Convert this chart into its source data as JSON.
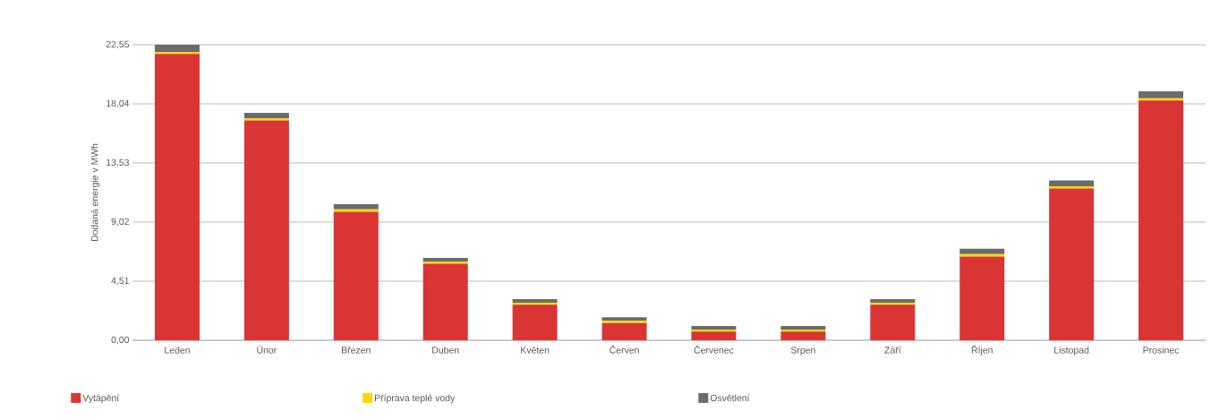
{
  "chart_data": {
    "type": "bar",
    "stacked": true,
    "ylabel": "Dodaná energie v MWh",
    "categories": [
      "Leden",
      "Únor",
      "Březen",
      "Duben",
      "Květen",
      "Červen",
      "Červenec",
      "Srpen",
      "Září",
      "Říjen",
      "Listopad",
      "Prosinec"
    ],
    "series": [
      {
        "name": "Vytápění",
        "color": "#d93535",
        "values": [
          21.85,
          16.77,
          9.81,
          5.84,
          2.72,
          1.32,
          0.66,
          0.66,
          2.71,
          6.39,
          11.59,
          18.3
        ]
      },
      {
        "name": "Příprava teplé vody",
        "color": "#ffd700",
        "values": [
          0.15,
          0.16,
          0.18,
          0.18,
          0.15,
          0.16,
          0.16,
          0.16,
          0.16,
          0.19,
          0.16,
          0.16
        ]
      },
      {
        "name": "Osvětlení",
        "color": "#6b6b6b",
        "values": [
          0.55,
          0.42,
          0.4,
          0.27,
          0.28,
          0.28,
          0.28,
          0.28,
          0.28,
          0.41,
          0.44,
          0.53
        ]
      }
    ],
    "ylim": [
      0,
      22.55
    ],
    "yticks": [
      {
        "value": 0,
        "label": "0,00"
      },
      {
        "value": 4.51,
        "label": "4,51"
      },
      {
        "value": 9.02,
        "label": "9,02"
      },
      {
        "value": 13.53,
        "label": "13,53"
      },
      {
        "value": 18.04,
        "label": "18,04"
      },
      {
        "value": 22.55,
        "label": "22,55"
      }
    ],
    "grid": "y",
    "legend": "bottom"
  }
}
